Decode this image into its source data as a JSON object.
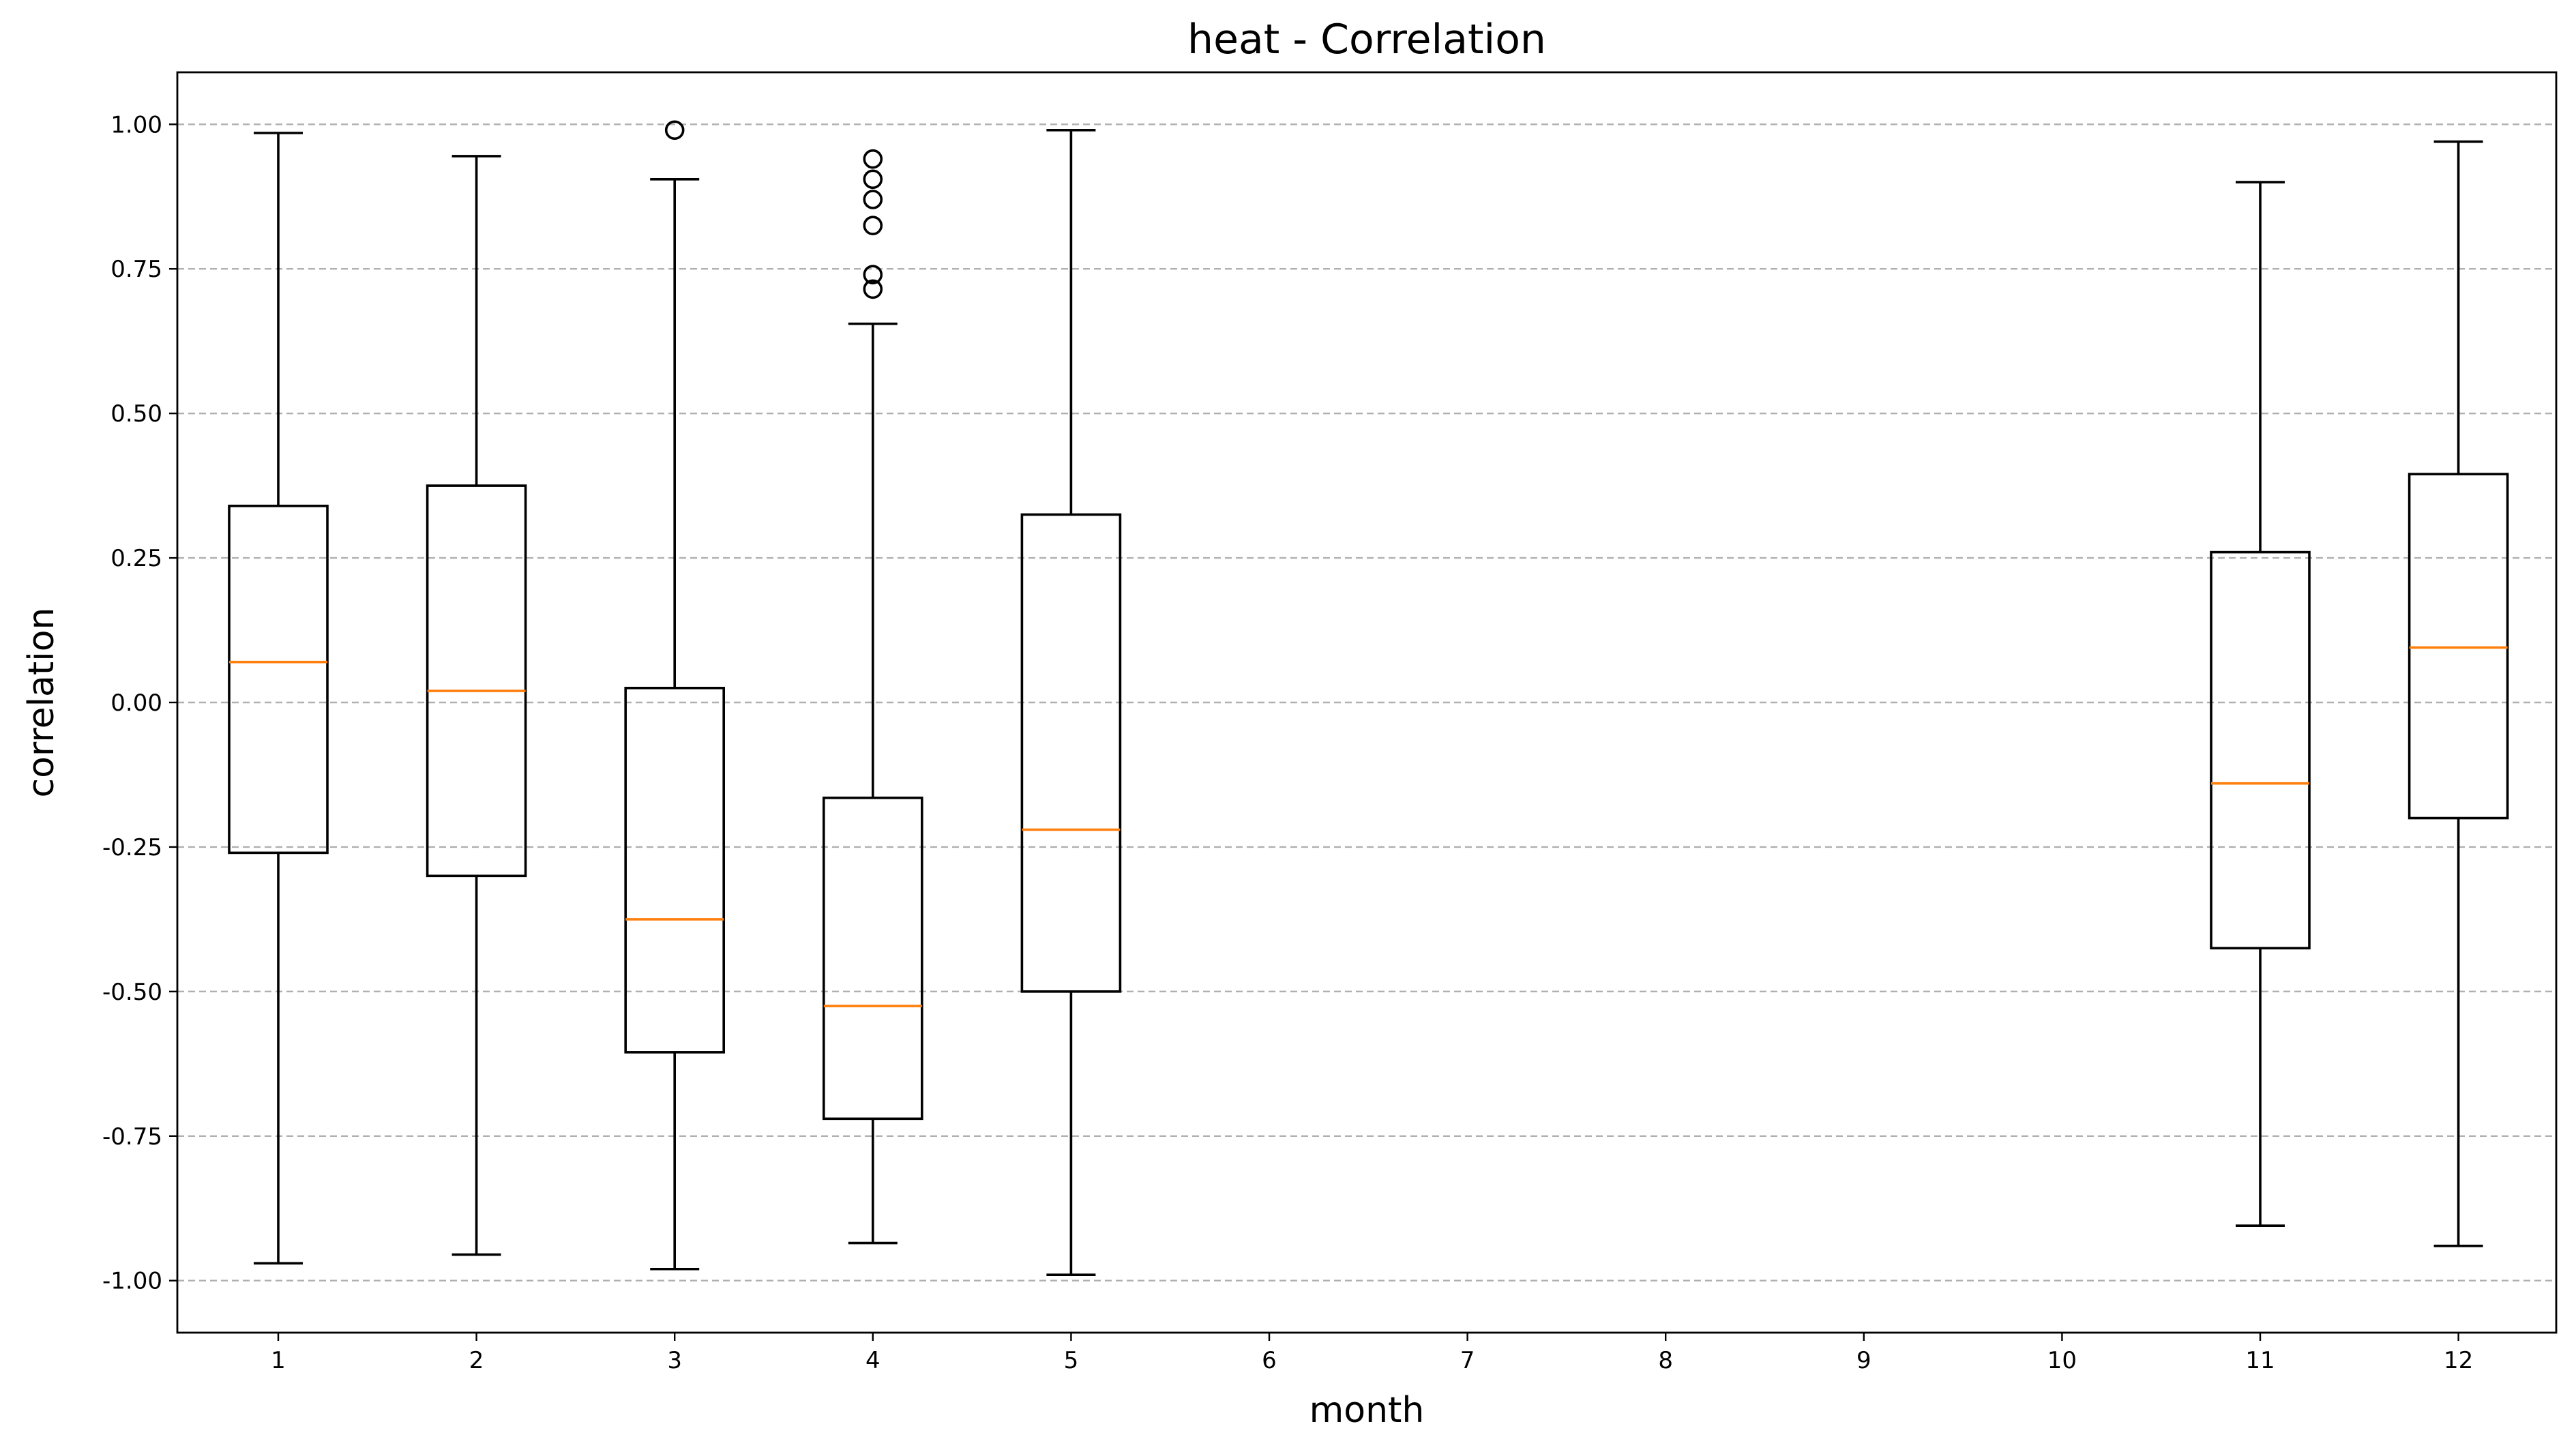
{
  "chart_data": {
    "type": "boxplot",
    "title": "heat - Correlation",
    "xlabel": "month",
    "ylabel": "correlation",
    "categories": [
      "1",
      "2",
      "3",
      "4",
      "5",
      "6",
      "7",
      "8",
      "9",
      "10",
      "11",
      "12"
    ],
    "ylim": [
      -1.09,
      1.09
    ],
    "yticks": [
      -1.0,
      -0.75,
      -0.5,
      -0.25,
      0.0,
      0.25,
      0.5,
      0.75,
      1.0
    ],
    "ytick_labels": [
      "-1.00",
      "-0.75",
      "-0.50",
      "-0.25",
      "0.00",
      "0.25",
      "0.50",
      "0.75",
      "1.00"
    ],
    "grid": "horizontal dashed",
    "box_color": "#000000",
    "median_color": "#ff7f0e",
    "grid_color": "#b0b0b0",
    "boxes": [
      {
        "month": "1",
        "whisker_low": -0.97,
        "q1": -0.26,
        "median": 0.07,
        "q3": 0.34,
        "whisker_high": 0.985,
        "fliers": []
      },
      {
        "month": "2",
        "whisker_low": -0.955,
        "q1": -0.3,
        "median": 0.02,
        "q3": 0.375,
        "whisker_high": 0.945,
        "fliers": []
      },
      {
        "month": "3",
        "whisker_low": -0.98,
        "q1": -0.605,
        "median": -0.375,
        "q3": 0.025,
        "whisker_high": 0.905,
        "fliers": [
          0.99
        ]
      },
      {
        "month": "4",
        "whisker_low": -0.935,
        "q1": -0.72,
        "median": -0.525,
        "q3": -0.165,
        "whisker_high": 0.655,
        "fliers": [
          0.94,
          0.905,
          0.87,
          0.825,
          0.74,
          0.715
        ]
      },
      {
        "month": "5",
        "whisker_low": -0.99,
        "q1": -0.5,
        "median": -0.22,
        "q3": 0.325,
        "whisker_high": 0.99,
        "fliers": []
      },
      {
        "month": "11",
        "whisker_low": -0.905,
        "q1": -0.425,
        "median": -0.14,
        "q3": 0.26,
        "whisker_high": 0.9,
        "fliers": []
      },
      {
        "month": "12",
        "whisker_low": -0.94,
        "q1": -0.2,
        "median": 0.095,
        "q3": 0.395,
        "whisker_high": 0.97,
        "fliers": []
      }
    ]
  }
}
